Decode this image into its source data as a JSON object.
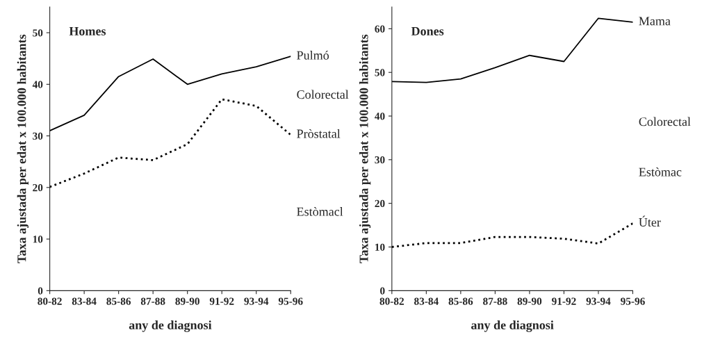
{
  "chart_data": [
    {
      "type": "line",
      "title": "Homes",
      "xlabel": "any de diagnosi",
      "ylabel": "Taxa ajustada per edat x 100.000 habitants",
      "categories": [
        "80-82",
        "83-84",
        "85-86",
        "87-88",
        "89-90",
        "91-92",
        "93-94",
        "95-96"
      ],
      "series": [
        {
          "name": "Pulmó",
          "color": "#000000",
          "line_style": "solid",
          "values": [
            31.0,
            34.0,
            41.5,
            44.9,
            40.0,
            42.0,
            43.4,
            45.4
          ]
        },
        {
          "name": "Pròstatal",
          "color": "#000000",
          "line_style": "dotted",
          "values": [
            20.1,
            22.7,
            25.8,
            25.3,
            28.4,
            37.1,
            35.8,
            30.2
          ]
        }
      ],
      "annotations": [
        "Colorectal",
        "Estòmacl"
      ],
      "ylim": [
        0,
        55
      ],
      "yticks": [
        0,
        10,
        20,
        30,
        40,
        50
      ],
      "grid": false,
      "legend": false
    },
    {
      "type": "line",
      "title": "Dones",
      "xlabel": "any de diagnosi",
      "ylabel": "Taxa ajustada per edat x 100.000 habitants",
      "categories": [
        "80-82",
        "83-84",
        "85-86",
        "87-88",
        "89-90",
        "91-92",
        "93-94",
        "95-96"
      ],
      "series": [
        {
          "name": "Mama",
          "color": "#000000",
          "line_style": "solid",
          "values": [
            47.9,
            47.7,
            48.5,
            51.1,
            53.9,
            52.5,
            62.4,
            61.5
          ]
        },
        {
          "name": "Úter",
          "color": "#000000",
          "line_style": "dotted",
          "values": [
            10.0,
            10.9,
            10.9,
            12.3,
            12.3,
            11.9,
            10.8,
            15.4
          ]
        }
      ],
      "annotations": [
        "Colorectal",
        "Estòmac"
      ],
      "ylim": [
        0,
        65
      ],
      "yticks": [
        0,
        10,
        20,
        30,
        40,
        50,
        60
      ],
      "grid": false,
      "legend": false
    }
  ]
}
